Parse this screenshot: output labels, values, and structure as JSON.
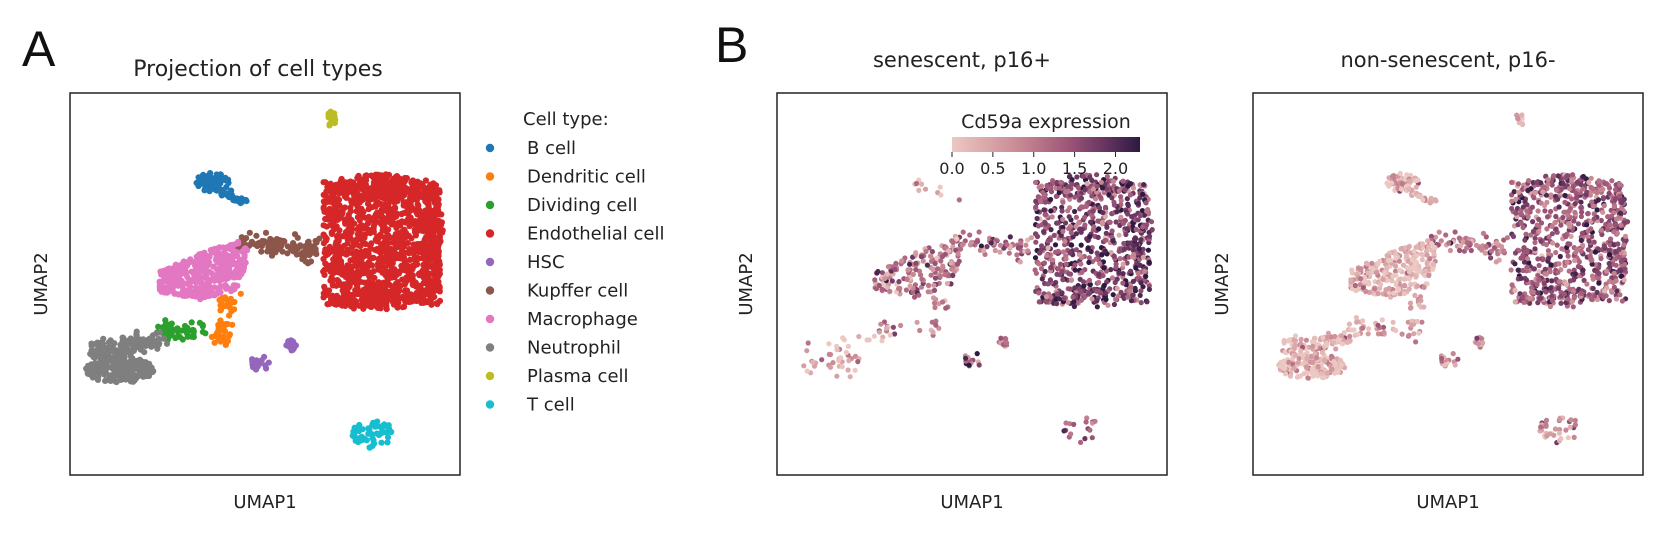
{
  "panel_a": {
    "letter": "A",
    "title": "Projection of cell types",
    "xlabel": "UMAP1",
    "ylabel": "UMAP2",
    "legend_title": "Cell type:",
    "legend_labels": [
      "B cell",
      "Dendritic cell",
      "Dividing cell",
      "Endothelial cell",
      "HSC",
      "Kupffer cell",
      "Macrophage",
      "Neutrophil",
      "Plasma cell",
      "T cell"
    ]
  },
  "panel_b": {
    "letter": "B",
    "left_title": "senescent, p16+",
    "right_title": "non-senescent, p16-",
    "xlabel": "UMAP1",
    "ylabel": "UMAP2",
    "colorbar_title": "Cd59a expression",
    "colorbar_ticks": [
      "0.0",
      "0.5",
      "1.0",
      "1.5",
      "2.0"
    ]
  },
  "colors": {
    "B cell": "#1f77b4",
    "Dendritic cell": "#ff7f0e",
    "Dividing cell": "#2ca02c",
    "Endothelial cell": "#d62728",
    "HSC": "#9467bd",
    "Kupffer cell": "#8c564b",
    "Macrophage": "#e377c2",
    "Neutrophil": "#7f7f7f",
    "Plasma cell": "#bcbd22",
    "T cell": "#17becf",
    "expr_low": "#ecc8c2",
    "expr_mid": "#a2597a",
    "expr_high": "#2c1a40"
  },
  "chart_data": [
    {
      "type": "scatter",
      "title": "Projection of cell types",
      "xlabel": "UMAP1",
      "ylabel": "UMAP2",
      "ticks_shown": false,
      "legend_title": "Cell type:",
      "legend_position": "right",
      "color_by": "Cell type",
      "clusters_approx_umap_centers": [
        {
          "name": "B cell",
          "x": 3.8,
          "y": 8.6
        },
        {
          "name": "Dendritic cell",
          "x": 4.3,
          "y": 4.6
        },
        {
          "name": "Dividing cell",
          "x": 3.2,
          "y": 4.1
        },
        {
          "name": "Endothelial cell",
          "x": 8.8,
          "y": 6.8
        },
        {
          "name": "HSC",
          "x": 5.2,
          "y": 3.4
        },
        {
          "name": "Kupffer cell",
          "x": 5.5,
          "y": 7.1
        },
        {
          "name": "Macrophage",
          "x": 3.7,
          "y": 5.9
        },
        {
          "name": "Neutrophil",
          "x": 1.4,
          "y": 3.3
        },
        {
          "name": "Plasma cell",
          "x": 7.0,
          "y": 11.6
        },
        {
          "name": "T cell",
          "x": 8.3,
          "y": 1.0
        }
      ]
    },
    {
      "type": "scatter",
      "title": "senescent, p16+",
      "xlabel": "UMAP1",
      "ylabel": "UMAP2",
      "ticks_shown": false,
      "color_by": "Cd59a expression",
      "colorbar": {
        "title": "Cd59a expression",
        "range": [
          0.0,
          2.3
        ],
        "ticks": [
          0.0,
          0.5,
          1.0,
          1.5,
          2.0
        ],
        "position": "top-right"
      }
    },
    {
      "type": "scatter",
      "title": "non-senescent, p16-",
      "xlabel": "UMAP1",
      "ylabel": "UMAP2",
      "ticks_shown": false,
      "color_by": "Cd59a expression",
      "colorbar": {
        "title": "Cd59a expression",
        "range": [
          0.0,
          2.3
        ],
        "ticks": [
          0.0,
          0.5,
          1.0,
          1.5,
          2.0
        ]
      }
    }
  ]
}
